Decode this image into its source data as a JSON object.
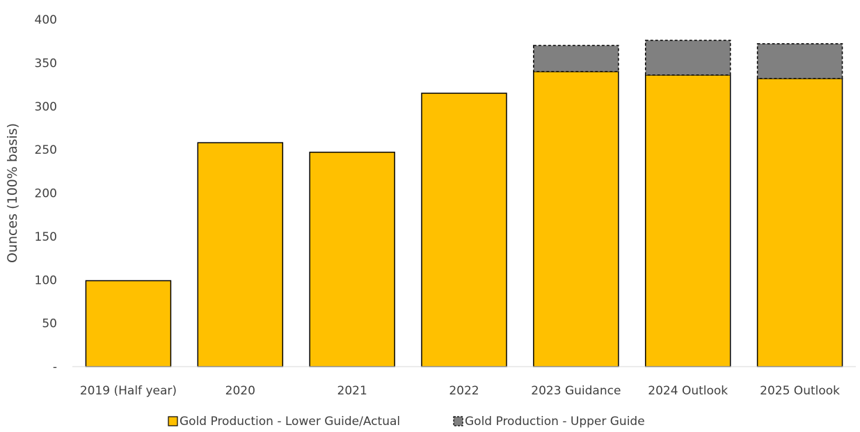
{
  "chart_data": {
    "type": "bar",
    "stacked": true,
    "categories": [
      "2019 (Half year)",
      "2020",
      "2021",
      "2022",
      "2023 Guidance",
      "2024 Outlook",
      "2025 Outlook"
    ],
    "series": [
      {
        "name": "Gold Production - Lower Guide/Actual",
        "values": [
          99,
          258,
          247,
          315,
          340,
          336,
          332
        ],
        "color": "#FFC000",
        "border": "solid"
      },
      {
        "name": "Gold Production - Upper Guide",
        "values": [
          0,
          0,
          0,
          0,
          30,
          40,
          40
        ],
        "color": "#808080",
        "border": "dashed"
      }
    ],
    "title": "",
    "xlabel": "",
    "ylabel": "Ounces (100% basis)",
    "ylim": [
      0,
      400
    ],
    "yticks": [
      0,
      50,
      100,
      150,
      200,
      250,
      300,
      350,
      400
    ],
    "ytick_labels": [
      "-",
      "50",
      "100",
      "150",
      "200",
      "250",
      "300",
      "350",
      "400"
    ],
    "grid": false,
    "legend_position": "bottom"
  }
}
